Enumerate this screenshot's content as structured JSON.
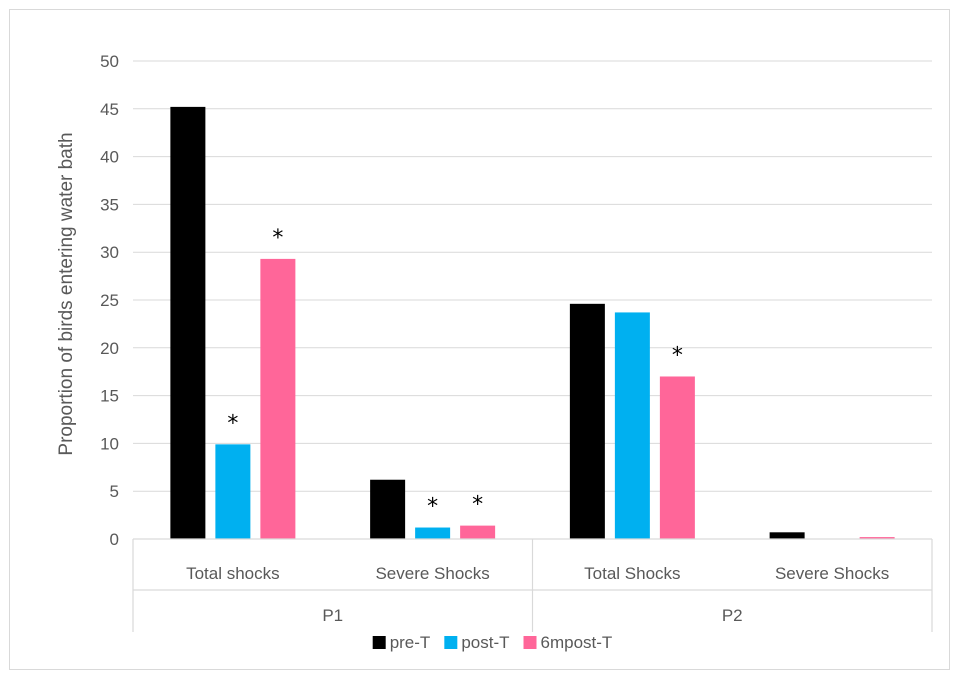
{
  "chart_data": {
    "type": "bar",
    "title": "",
    "ylabel": "Proportion of birds entering water bath",
    "xlabel": "",
    "ylim": [
      0,
      50
    ],
    "yticks": [
      0,
      5,
      10,
      15,
      20,
      25,
      30,
      35,
      40,
      45,
      50
    ],
    "grid": true,
    "legend_position": "bottom",
    "groups": [
      {
        "label": "P1",
        "categories": [
          "Total shocks",
          "Severe Shocks"
        ]
      },
      {
        "label": "P2",
        "categories": [
          "Total Shocks",
          "Severe Shocks"
        ]
      }
    ],
    "categories": [
      "Total shocks",
      "Severe Shocks",
      "Total Shocks",
      "Severe Shocks"
    ],
    "series": [
      {
        "name": "pre-T",
        "color": "#000000",
        "values": [
          45.2,
          6.2,
          24.6,
          0.7
        ]
      },
      {
        "name": "post-T",
        "color": "#00b0f0",
        "values": [
          9.9,
          1.2,
          23.7,
          0.0
        ]
      },
      {
        "name": "6mpost-T",
        "color": "#ff6699",
        "values": [
          29.3,
          1.4,
          17.0,
          0.2
        ]
      }
    ],
    "significance": [
      {
        "category": 0,
        "series": 1,
        "label": "*"
      },
      {
        "category": 0,
        "series": 2,
        "label": "*"
      },
      {
        "category": 1,
        "series": 1,
        "label": "*"
      },
      {
        "category": 1,
        "series": 2,
        "label": "*"
      },
      {
        "category": 2,
        "series": 2,
        "label": "*"
      }
    ]
  }
}
